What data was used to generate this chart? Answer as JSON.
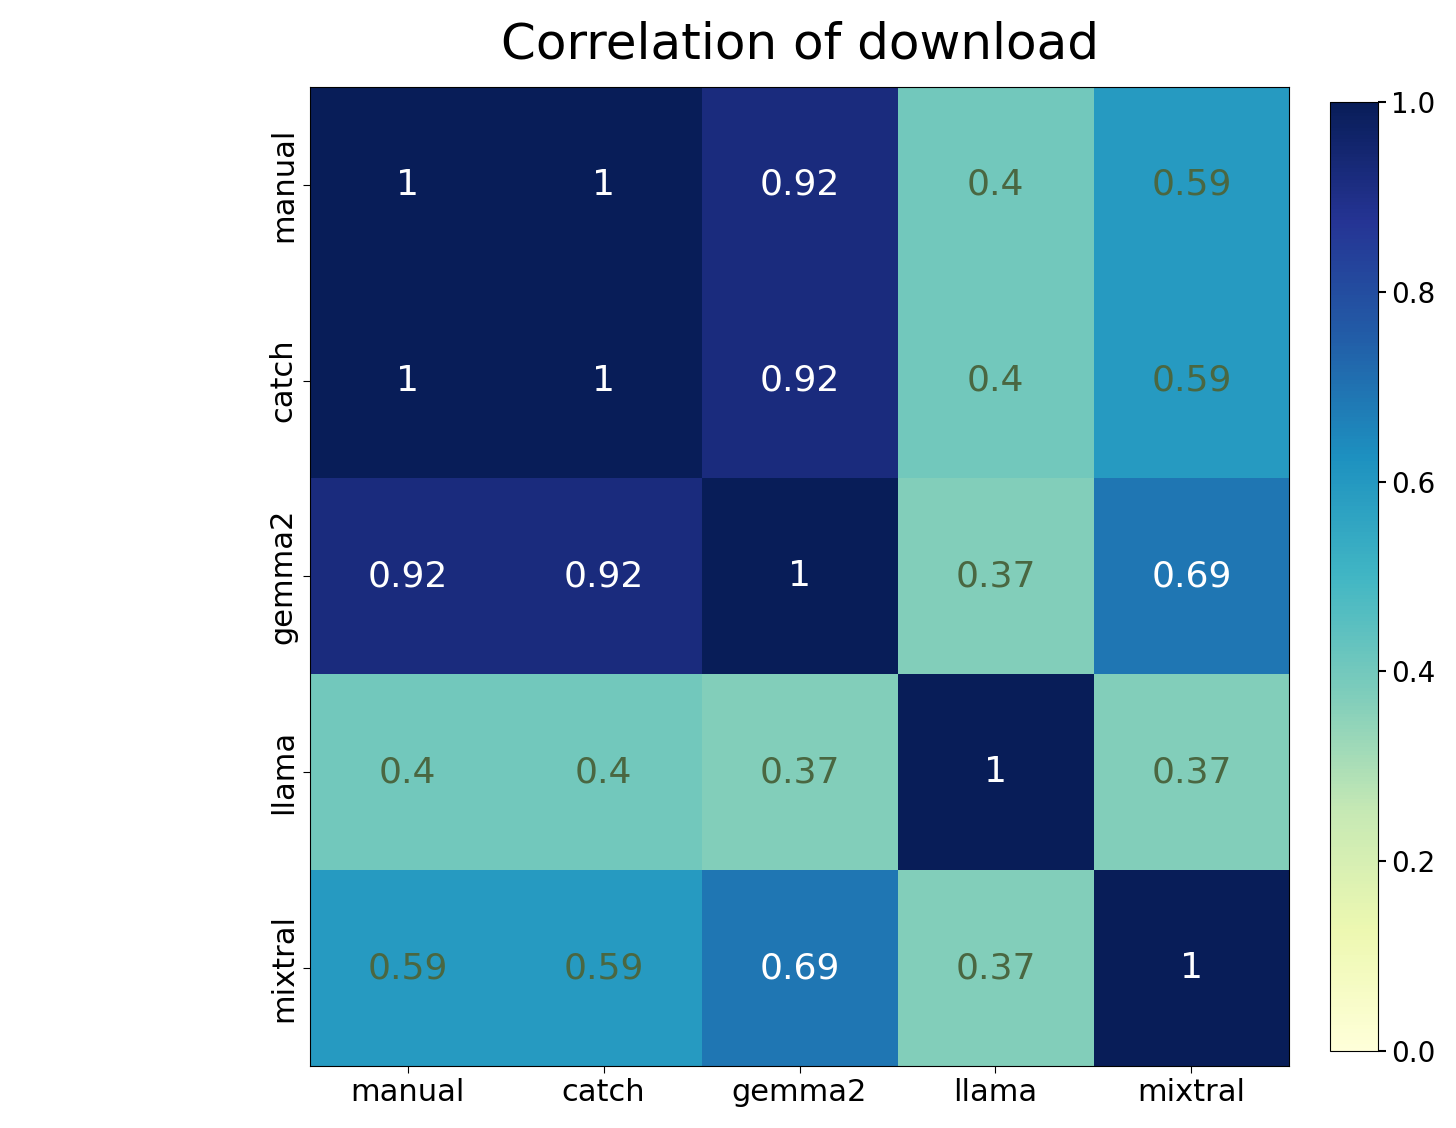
{
  "title": "Correlation of download",
  "labels": [
    "manual",
    "catch",
    "gemma2",
    "llama",
    "mixtral"
  ],
  "matrix": [
    [
      1.0,
      1.0,
      0.92,
      0.4,
      0.59
    ],
    [
      1.0,
      1.0,
      0.92,
      0.4,
      0.59
    ],
    [
      0.92,
      0.92,
      1.0,
      0.37,
      0.69
    ],
    [
      0.4,
      0.4,
      0.37,
      1.0,
      0.37
    ],
    [
      0.59,
      0.59,
      0.69,
      0.37,
      1.0
    ]
  ],
  "annotations": [
    [
      "1",
      "1",
      "0.92",
      "0.4",
      "0.59"
    ],
    [
      "1",
      "1",
      "0.92",
      "0.4",
      "0.59"
    ],
    [
      "0.92",
      "0.92",
      "1",
      "0.37",
      "0.69"
    ],
    [
      "0.4",
      "0.4",
      "0.37",
      "1",
      "0.37"
    ],
    [
      "0.59",
      "0.59",
      "0.69",
      "0.37",
      "1"
    ]
  ],
  "cmap": "YlGnBu",
  "vmin": 0.0,
  "vmax": 1.0,
  "title_fontsize": 36,
  "tick_fontsize": 22,
  "annot_fontsize": 26,
  "colorbar_tick_fontsize": 20,
  "white_threshold": 0.6,
  "dark_text_color": "#4a6741",
  "light_text_color": "white",
  "figsize": [
    14.56,
    11.28
  ],
  "dpi": 100
}
